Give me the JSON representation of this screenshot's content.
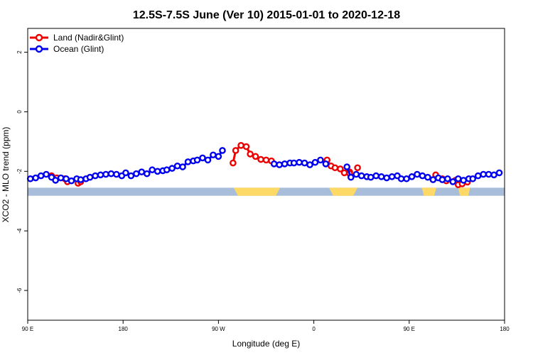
{
  "chart_data": {
    "type": "line",
    "title": "12.5S-7.5S June (Ver 10)   2015-01-01 to 2020-12-18",
    "xlabel": "Longitude (deg E)",
    "ylabel": "XCO2 - MLO trend (ppm)",
    "xlim": [
      90,
      450
    ],
    "ylim": [
      -7,
      2.8
    ],
    "x_ticks": [
      {
        "value": 90,
        "label": "90 E"
      },
      {
        "value": 162,
        "label": "180"
      },
      {
        "value": 234,
        "label": "90 W"
      },
      {
        "value": 306,
        "label": "0"
      },
      {
        "value": 378,
        "label": "90 E"
      },
      {
        "value": 450,
        "label": "180"
      }
    ],
    "y_ticks": [
      {
        "value": 2,
        "label": "2"
      },
      {
        "value": 0,
        "label": "0"
      },
      {
        "value": -2,
        "label": "-2"
      },
      {
        "value": -4,
        "label": "-4"
      },
      {
        "value": -6,
        "label": "-6"
      }
    ],
    "legend_position": "top-left",
    "grid": false,
    "landmask": {
      "ocean_color": "#a7bdd9",
      "land_color": "#ffd966",
      "y_top": -2.55,
      "y_bottom": -2.82,
      "land_segments": [
        [
          245.5,
          280.5
        ],
        [
          317.5,
          339
        ],
        [
          387.5,
          398.5
        ],
        [
          415,
          424
        ]
      ]
    },
    "series": [
      {
        "name": "Land (Nadir&Glint)",
        "color": "#ee0000",
        "points": [
          [
            108,
            -2.15
          ],
          [
            112,
            -2.22
          ],
          [
            118,
            -2.25
          ],
          [
            120,
            -2.35
          ],
          [
            128,
            -2.4
          ],
          [
            130,
            -2.35
          ],
          [
            245,
            -1.72
          ],
          [
            247,
            -1.3
          ],
          [
            251,
            -1.13
          ],
          [
            255,
            -1.17
          ],
          [
            258,
            -1.42
          ],
          [
            262,
            -1.5
          ],
          [
            266,
            -1.6
          ],
          [
            270,
            -1.62
          ],
          [
            274,
            -1.65
          ],
          [
            316,
            -1.62
          ],
          [
            319,
            -1.82
          ],
          [
            322,
            -1.88
          ],
          [
            326,
            -1.92
          ],
          [
            329,
            -2.05
          ],
          [
            333,
            -2.02
          ],
          [
            333,
            -2.07
          ],
          [
            339,
            -1.88
          ],
          [
            398,
            -2.12
          ],
          [
            403,
            -2.25
          ],
          [
            406,
            -2.32
          ],
          [
            413,
            -2.3
          ],
          [
            415,
            -2.45
          ],
          [
            418,
            -2.42
          ],
          [
            422,
            -2.36
          ]
        ]
      },
      {
        "name": "Ocean (Glint)",
        "color": "#0000ee",
        "points": [
          [
            92,
            -2.25
          ],
          [
            96,
            -2.22
          ],
          [
            100,
            -2.15
          ],
          [
            104,
            -2.1
          ],
          [
            108,
            -2.2
          ],
          [
            111,
            -2.3
          ],
          [
            115,
            -2.22
          ],
          [
            119,
            -2.25
          ],
          [
            123,
            -2.32
          ],
          [
            127,
            -2.25
          ],
          [
            130,
            -2.28
          ],
          [
            134,
            -2.25
          ],
          [
            137,
            -2.2
          ],
          [
            141,
            -2.15
          ],
          [
            145,
            -2.12
          ],
          [
            149,
            -2.1
          ],
          [
            153,
            -2.08
          ],
          [
            157,
            -2.1
          ],
          [
            161,
            -2.15
          ],
          [
            164,
            -2.05
          ],
          [
            168,
            -2.15
          ],
          [
            172,
            -2.08
          ],
          [
            176,
            -2.02
          ],
          [
            180,
            -2.08
          ],
          [
            184,
            -1.95
          ],
          [
            188,
            -2.0
          ],
          [
            192,
            -1.98
          ],
          [
            195,
            -1.95
          ],
          [
            199,
            -1.9
          ],
          [
            203,
            -1.82
          ],
          [
            207,
            -1.85
          ],
          [
            211,
            -1.68
          ],
          [
            215,
            -1.65
          ],
          [
            218,
            -1.62
          ],
          [
            222,
            -1.55
          ],
          [
            226,
            -1.62
          ],
          [
            230,
            -1.45
          ],
          [
            234,
            -1.5
          ],
          [
            237,
            -1.3
          ],
          [
            276,
            -1.75
          ],
          [
            280,
            -1.78
          ],
          [
            284,
            -1.75
          ],
          [
            288,
            -1.72
          ],
          [
            291,
            -1.72
          ],
          [
            295,
            -1.7
          ],
          [
            299,
            -1.72
          ],
          [
            303,
            -1.78
          ],
          [
            307,
            -1.7
          ],
          [
            311,
            -1.62
          ],
          [
            315,
            -1.75
          ],
          [
            331,
            -1.85
          ],
          [
            334,
            -2.2
          ],
          [
            338,
            -2.1
          ],
          [
            342,
            -2.15
          ],
          [
            346,
            -2.18
          ],
          [
            349,
            -2.2
          ],
          [
            353,
            -2.15
          ],
          [
            357,
            -2.18
          ],
          [
            361,
            -2.22
          ],
          [
            365,
            -2.18
          ],
          [
            369,
            -2.15
          ],
          [
            372,
            -2.25
          ],
          [
            376,
            -2.25
          ],
          [
            380,
            -2.18
          ],
          [
            384,
            -2.1
          ],
          [
            388,
            -2.15
          ],
          [
            392,
            -2.2
          ],
          [
            396,
            -2.28
          ],
          [
            400,
            -2.22
          ],
          [
            403,
            -2.28
          ],
          [
            407,
            -2.25
          ],
          [
            411,
            -2.35
          ],
          [
            415,
            -2.25
          ],
          [
            419,
            -2.3
          ],
          [
            423,
            -2.25
          ],
          [
            426,
            -2.25
          ],
          [
            430,
            -2.15
          ],
          [
            434,
            -2.1
          ],
          [
            438,
            -2.1
          ],
          [
            442,
            -2.12
          ],
          [
            446,
            -2.05
          ]
        ]
      }
    ]
  }
}
